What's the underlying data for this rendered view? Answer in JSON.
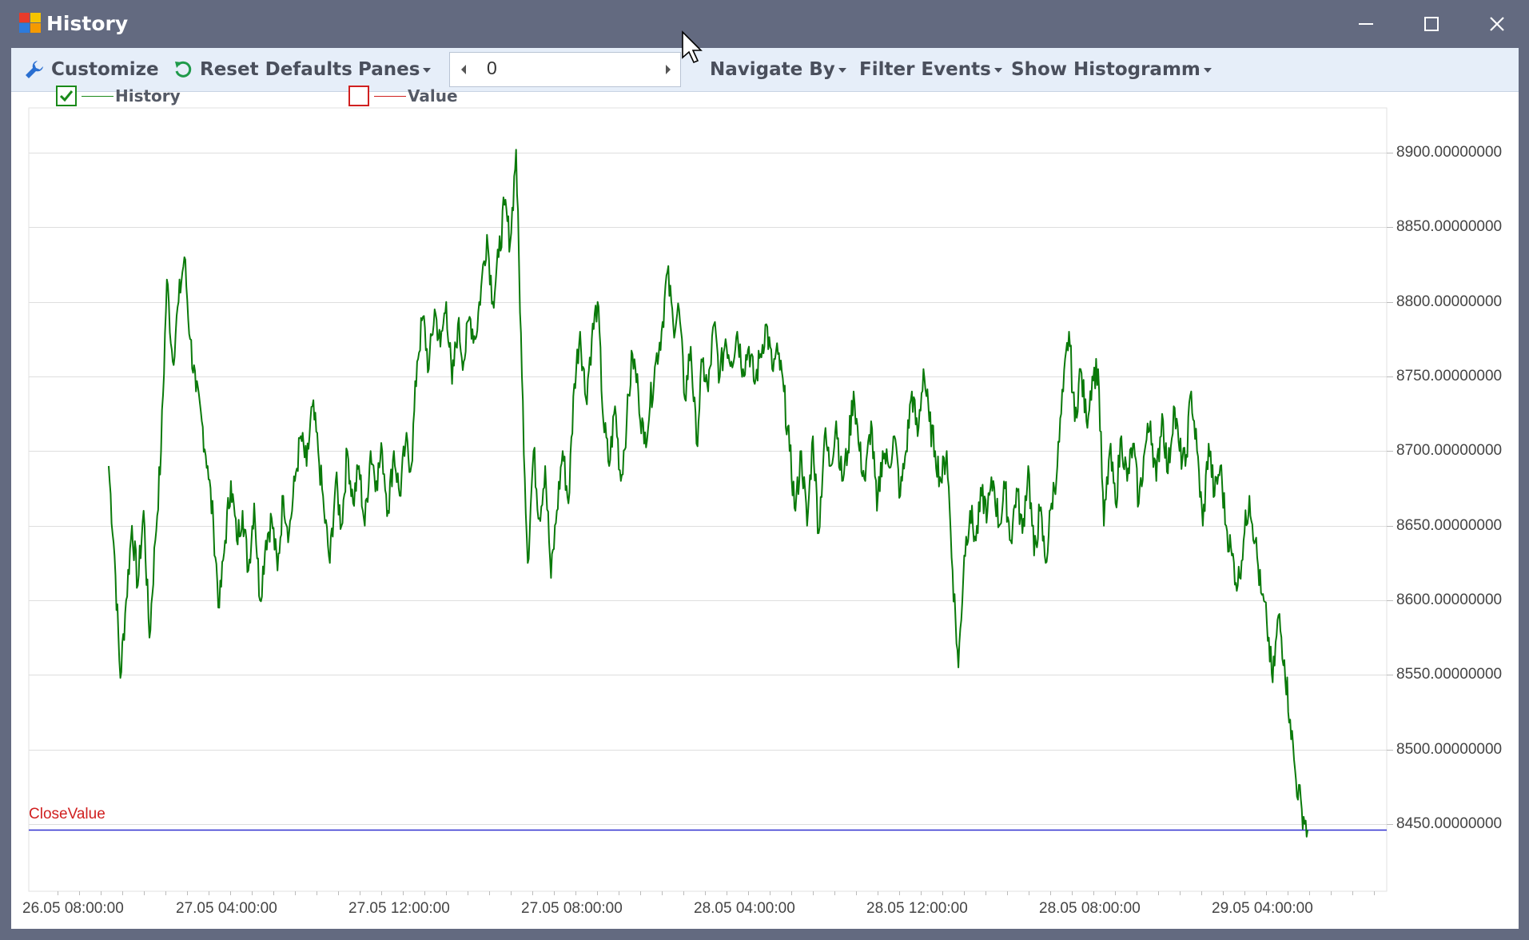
{
  "window": {
    "title": "History",
    "colors": {
      "frame": "#636a80",
      "toolbar": "#e6eef9"
    }
  },
  "toolbar": {
    "customize_label": "Customize",
    "reset_label": "Reset Defaults",
    "panes_label": "Panes",
    "spin_value": "0",
    "navigate_label": "Navigate By",
    "filter_label": "Filter Events",
    "histogram_label": "Show Histogramm"
  },
  "legend": [
    {
      "name": "History",
      "checked": true,
      "color": "#1a8a1a"
    },
    {
      "name": "Value",
      "checked": false,
      "color": "#d02020"
    }
  ],
  "constant_line": {
    "label": "CloseValue",
    "value": 8446,
    "label_color": "#d02020",
    "line_color": "#3030d0"
  },
  "chart_data": {
    "type": "line",
    "series": [
      {
        "name": "History",
        "color": "#0a7a0a",
        "points": [
          [
            "26.05 11:00",
            8690
          ],
          [
            "26.05 11:15",
            8630
          ],
          [
            "26.05 11:30",
            8548
          ],
          [
            "26.05 11:45",
            8600
          ],
          [
            "26.05 12:00",
            8650
          ],
          [
            "26.05 12:30",
            8610
          ],
          [
            "26.05 13:00",
            8660
          ],
          [
            "26.05 13:30",
            8575
          ],
          [
            "26.05 14:00",
            8640
          ],
          [
            "26.05 14:30",
            8700
          ],
          [
            "26.05 15:00",
            8815
          ],
          [
            "26.05 15:30",
            8760
          ],
          [
            "26.05 16:00",
            8800
          ],
          [
            "26.05 16:30",
            8830
          ],
          [
            "26.05 17:00",
            8775
          ],
          [
            "26.05 17:30",
            8740
          ],
          [
            "26.05 18:00",
            8720
          ],
          [
            "26.05 18:30",
            8690
          ],
          [
            "26.05 19:00",
            8650
          ],
          [
            "26.05 19:30",
            8595
          ],
          [
            "26.05 20:00",
            8640
          ],
          [
            "26.05 20:30",
            8680
          ],
          [
            "26.05 21:00",
            8640
          ],
          [
            "26.05 21:30",
            8660
          ],
          [
            "26.05 22:00",
            8620
          ],
          [
            "26.05 22:30",
            8665
          ],
          [
            "26.05 23:00",
            8600
          ],
          [
            "26.05 23:30",
            8640
          ],
          [
            "27.05 00:00",
            8655
          ],
          [
            "27.05 00:30",
            8620
          ],
          [
            "27.05 01:00",
            8670
          ],
          [
            "27.05 01:30",
            8645
          ],
          [
            "27.05 02:00",
            8680
          ],
          [
            "27.05 02:30",
            8710
          ],
          [
            "27.05 03:00",
            8690
          ],
          [
            "27.05 03:30",
            8730
          ],
          [
            "27.05 04:00",
            8700
          ],
          [
            "27.05 04:30",
            8660
          ],
          [
            "27.05 05:00",
            8625
          ],
          [
            "27.05 05:30",
            8680
          ],
          [
            "27.05 06:00",
            8650
          ],
          [
            "27.05 06:30",
            8700
          ],
          [
            "27.05 07:00",
            8665
          ],
          [
            "27.05 07:30",
            8690
          ],
          [
            "27.05 08:00",
            8650
          ],
          [
            "27.05 08:30",
            8700
          ],
          [
            "27.05 09:00",
            8680
          ],
          [
            "27.05 09:30",
            8700
          ],
          [
            "27.05 10:00",
            8660
          ],
          [
            "27.05 10:30",
            8700
          ],
          [
            "27.05 11:00",
            8670
          ],
          [
            "27.05 11:30",
            8705
          ],
          [
            "27.05 12:00",
            8690
          ],
          [
            "27.05 12:30",
            8760
          ],
          [
            "27.05 13:00",
            8790
          ],
          [
            "27.05 13:30",
            8755
          ],
          [
            "27.05 14:00",
            8795
          ],
          [
            "27.05 14:30",
            8770
          ],
          [
            "27.05 15:00",
            8800
          ],
          [
            "27.05 15:30",
            8745
          ],
          [
            "27.05 16:00",
            8785
          ],
          [
            "27.05 16:30",
            8760
          ],
          [
            "27.05 17:00",
            8790
          ],
          [
            "27.05 17:30",
            8775
          ],
          [
            "27.05 18:00",
            8810
          ],
          [
            "27.05 18:30",
            8845
          ],
          [
            "27.05 19:00",
            8800
          ],
          [
            "27.05 19:30",
            8830
          ],
          [
            "27.05 20:00",
            8865
          ],
          [
            "27.05 20:30",
            8840
          ],
          [
            "27.05 21:00",
            8902
          ],
          [
            "27.05 21:15",
            8750
          ],
          [
            "27.05 21:30",
            8625
          ],
          [
            "27.05 22:00",
            8700
          ],
          [
            "27.05 22:30",
            8655
          ],
          [
            "27.05 23:00",
            8690
          ],
          [
            "27.05 23:30",
            8615
          ],
          [
            "28.05 00:00",
            8660
          ],
          [
            "28.05 00:30",
            8700
          ],
          [
            "28.05 01:00",
            8665
          ],
          [
            "28.05 01:30",
            8745
          ],
          [
            "28.05 02:00",
            8780
          ],
          [
            "28.05 02:30",
            8735
          ],
          [
            "28.05 03:00",
            8775
          ],
          [
            "28.05 03:30",
            8800
          ],
          [
            "28.05 04:00",
            8720
          ],
          [
            "28.05 04:30",
            8690
          ],
          [
            "28.05 05:00",
            8730
          ],
          [
            "28.05 05:30",
            8680
          ],
          [
            "28.05 06:00",
            8720
          ],
          [
            "28.05 06:30",
            8765
          ],
          [
            "28.05 07:00",
            8740
          ],
          [
            "28.05 07:30",
            8705
          ],
          [
            "28.05 08:00",
            8730
          ],
          [
            "28.05 08:30",
            8760
          ],
          [
            "28.05 09:00",
            8780
          ],
          [
            "28.05 09:30",
            8820
          ],
          [
            "28.05 10:00",
            8785
          ],
          [
            "28.05 10:30",
            8795
          ],
          [
            "28.05 11:00",
            8735
          ],
          [
            "28.05 11:30",
            8770
          ],
          [
            "28.05 12:00",
            8705
          ],
          [
            "28.05 12:30",
            8760
          ],
          [
            "28.05 13:00",
            8740
          ],
          [
            "28.05 13:30",
            8785
          ],
          [
            "28.05 14:00",
            8750
          ],
          [
            "28.05 14:30",
            8775
          ],
          [
            "28.05 15:00",
            8760
          ],
          [
            "28.05 15:30",
            8780
          ],
          [
            "28.05 16:00",
            8755
          ],
          [
            "28.05 16:30",
            8770
          ],
          [
            "28.05 17:00",
            8745
          ],
          [
            "28.05 17:30",
            8765
          ],
          [
            "28.05 18:00",
            8785
          ],
          [
            "28.05 18:30",
            8755
          ],
          [
            "28.05 19:00",
            8765
          ],
          [
            "28.05 19:30",
            8740
          ],
          [
            "28.05 20:00",
            8700
          ],
          [
            "28.05 20:30",
            8660
          ],
          [
            "28.05 21:00",
            8700
          ],
          [
            "28.05 21:30",
            8650
          ],
          [
            "28.05 22:00",
            8710
          ],
          [
            "28.05 22:30",
            8645
          ],
          [
            "28.05 23:00",
            8710
          ],
          [
            "28.05 23:30",
            8690
          ],
          [
            "29.05 00:00",
            8720
          ],
          [
            "29.05 00:30",
            8680
          ],
          [
            "29.05 01:00",
            8700
          ],
          [
            "29.05 01:30",
            8740
          ],
          [
            "29.05 02:00",
            8700
          ],
          [
            "29.05 02:30",
            8680
          ],
          [
            "29.05 03:00",
            8720
          ],
          [
            "29.05 03:30",
            8660
          ],
          [
            "29.05 04:00",
            8700
          ],
          [
            "29.05 04:30",
            8690
          ],
          [
            "29.05 05:00",
            8710
          ],
          [
            "29.05 05:30",
            8670
          ],
          [
            "29.05 06:00",
            8700
          ],
          [
            "29.05 06:30",
            8740
          ],
          [
            "29.05 07:00",
            8710
          ],
          [
            "29.05 07:30",
            8755
          ],
          [
            "29.05 08:00",
            8720
          ],
          [
            "29.05 08:30",
            8700
          ],
          [
            "29.05 09:00",
            8680
          ],
          [
            "29.05 09:30",
            8700
          ],
          [
            "29.05 10:00",
            8620
          ],
          [
            "29.05 10:15",
            8555
          ],
          [
            "29.05 10:30",
            8630
          ],
          [
            "29.05 11:00",
            8660
          ],
          [
            "29.05 11:30",
            8640
          ],
          [
            "29.05 12:00",
            8670
          ],
          [
            "29.05 12:30",
            8660
          ],
          [
            "29.05 13:00",
            8680
          ],
          [
            "29.05 13:30",
            8650
          ],
          [
            "29.05 14:00",
            8675
          ],
          [
            "29.05 14:30",
            8640
          ],
          [
            "29.05 15:00",
            8675
          ],
          [
            "29.05 15:30",
            8645
          ],
          [
            "29.05 16:00",
            8690
          ],
          [
            "29.05 16:30",
            8630
          ],
          [
            "29.05 17:00",
            8660
          ],
          [
            "29.05 17:30",
            8625
          ],
          [
            "29.05 18:00",
            8665
          ],
          [
            "29.05 18:30",
            8690
          ],
          [
            "29.05 19:00",
            8740
          ],
          [
            "29.05 19:30",
            8780
          ],
          [
            "29.05 20:00",
            8720
          ],
          [
            "29.05 20:30",
            8755
          ],
          [
            "29.05 21:00",
            8720
          ],
          [
            "29.05 21:30",
            8750
          ],
          [
            "29.05 22:00",
            8755
          ],
          [
            "29.05 22:30",
            8650
          ],
          [
            "29.05 23:00",
            8700
          ],
          [
            "29.05 23:30",
            8665
          ],
          [
            "30.05 00:00",
            8710
          ],
          [
            "30.05 00:30",
            8680
          ],
          [
            "30.05 01:00",
            8705
          ],
          [
            "30.05 01:30",
            8665
          ],
          [
            "30.05 02:00",
            8700
          ],
          [
            "30.05 02:30",
            8720
          ],
          [
            "30.05 03:00",
            8680
          ],
          [
            "30.05 03:30",
            8725
          ],
          [
            "30.05 04:00",
            8685
          ],
          [
            "30.05 04:30",
            8730
          ],
          [
            "30.05 05:00",
            8700
          ],
          [
            "30.05 05:30",
            8690
          ],
          [
            "30.05 06:00",
            8740
          ],
          [
            "30.05 06:30",
            8700
          ],
          [
            "30.05 07:00",
            8650
          ],
          [
            "30.05 07:30",
            8705
          ],
          [
            "30.05 08:00",
            8670
          ],
          [
            "30.05 08:30",
            8690
          ],
          [
            "30.05 09:00",
            8650
          ],
          [
            "30.05 09:30",
            8630
          ],
          [
            "30.05 10:00",
            8610
          ],
          [
            "30.05 10:30",
            8640
          ],
          [
            "30.05 11:00",
            8670
          ],
          [
            "30.05 11:30",
            8640
          ],
          [
            "30.05 12:00",
            8605
          ],
          [
            "30.05 12:30",
            8585
          ],
          [
            "30.05 13:00",
            8545
          ],
          [
            "30.05 13:15",
            8590
          ],
          [
            "30.05 13:30",
            8560
          ],
          [
            "30.05 13:45",
            8520
          ],
          [
            "30.05 14:00",
            8480
          ],
          [
            "30.05 14:10",
            8460
          ],
          [
            "30.05 14:20",
            8446
          ]
        ]
      }
    ],
    "x_axis": {
      "tick_labels": [
        "26.05 08:00:00",
        "27.05 04:00:00",
        "27.05 12:00:00",
        "27.05 08:00:00",
        "28.05 04:00:00",
        "28.05 12:00:00",
        "28.05 08:00:00",
        "29.05 04:00:00"
      ]
    },
    "y_axis": {
      "position": "right",
      "range": [
        8405,
        8930
      ],
      "ticks": [
        8450,
        8500,
        8550,
        8600,
        8650,
        8700,
        8750,
        8800,
        8850,
        8900
      ],
      "tick_labels": [
        "8450.00000000",
        "8500.00000000",
        "8550.00000000",
        "8600.00000000",
        "8650.00000000",
        "8700.00000000",
        "8750.00000000",
        "8800.00000000",
        "8850.00000000",
        "8900.00000000"
      ]
    },
    "grid": true,
    "legend_placement": "top-left"
  }
}
